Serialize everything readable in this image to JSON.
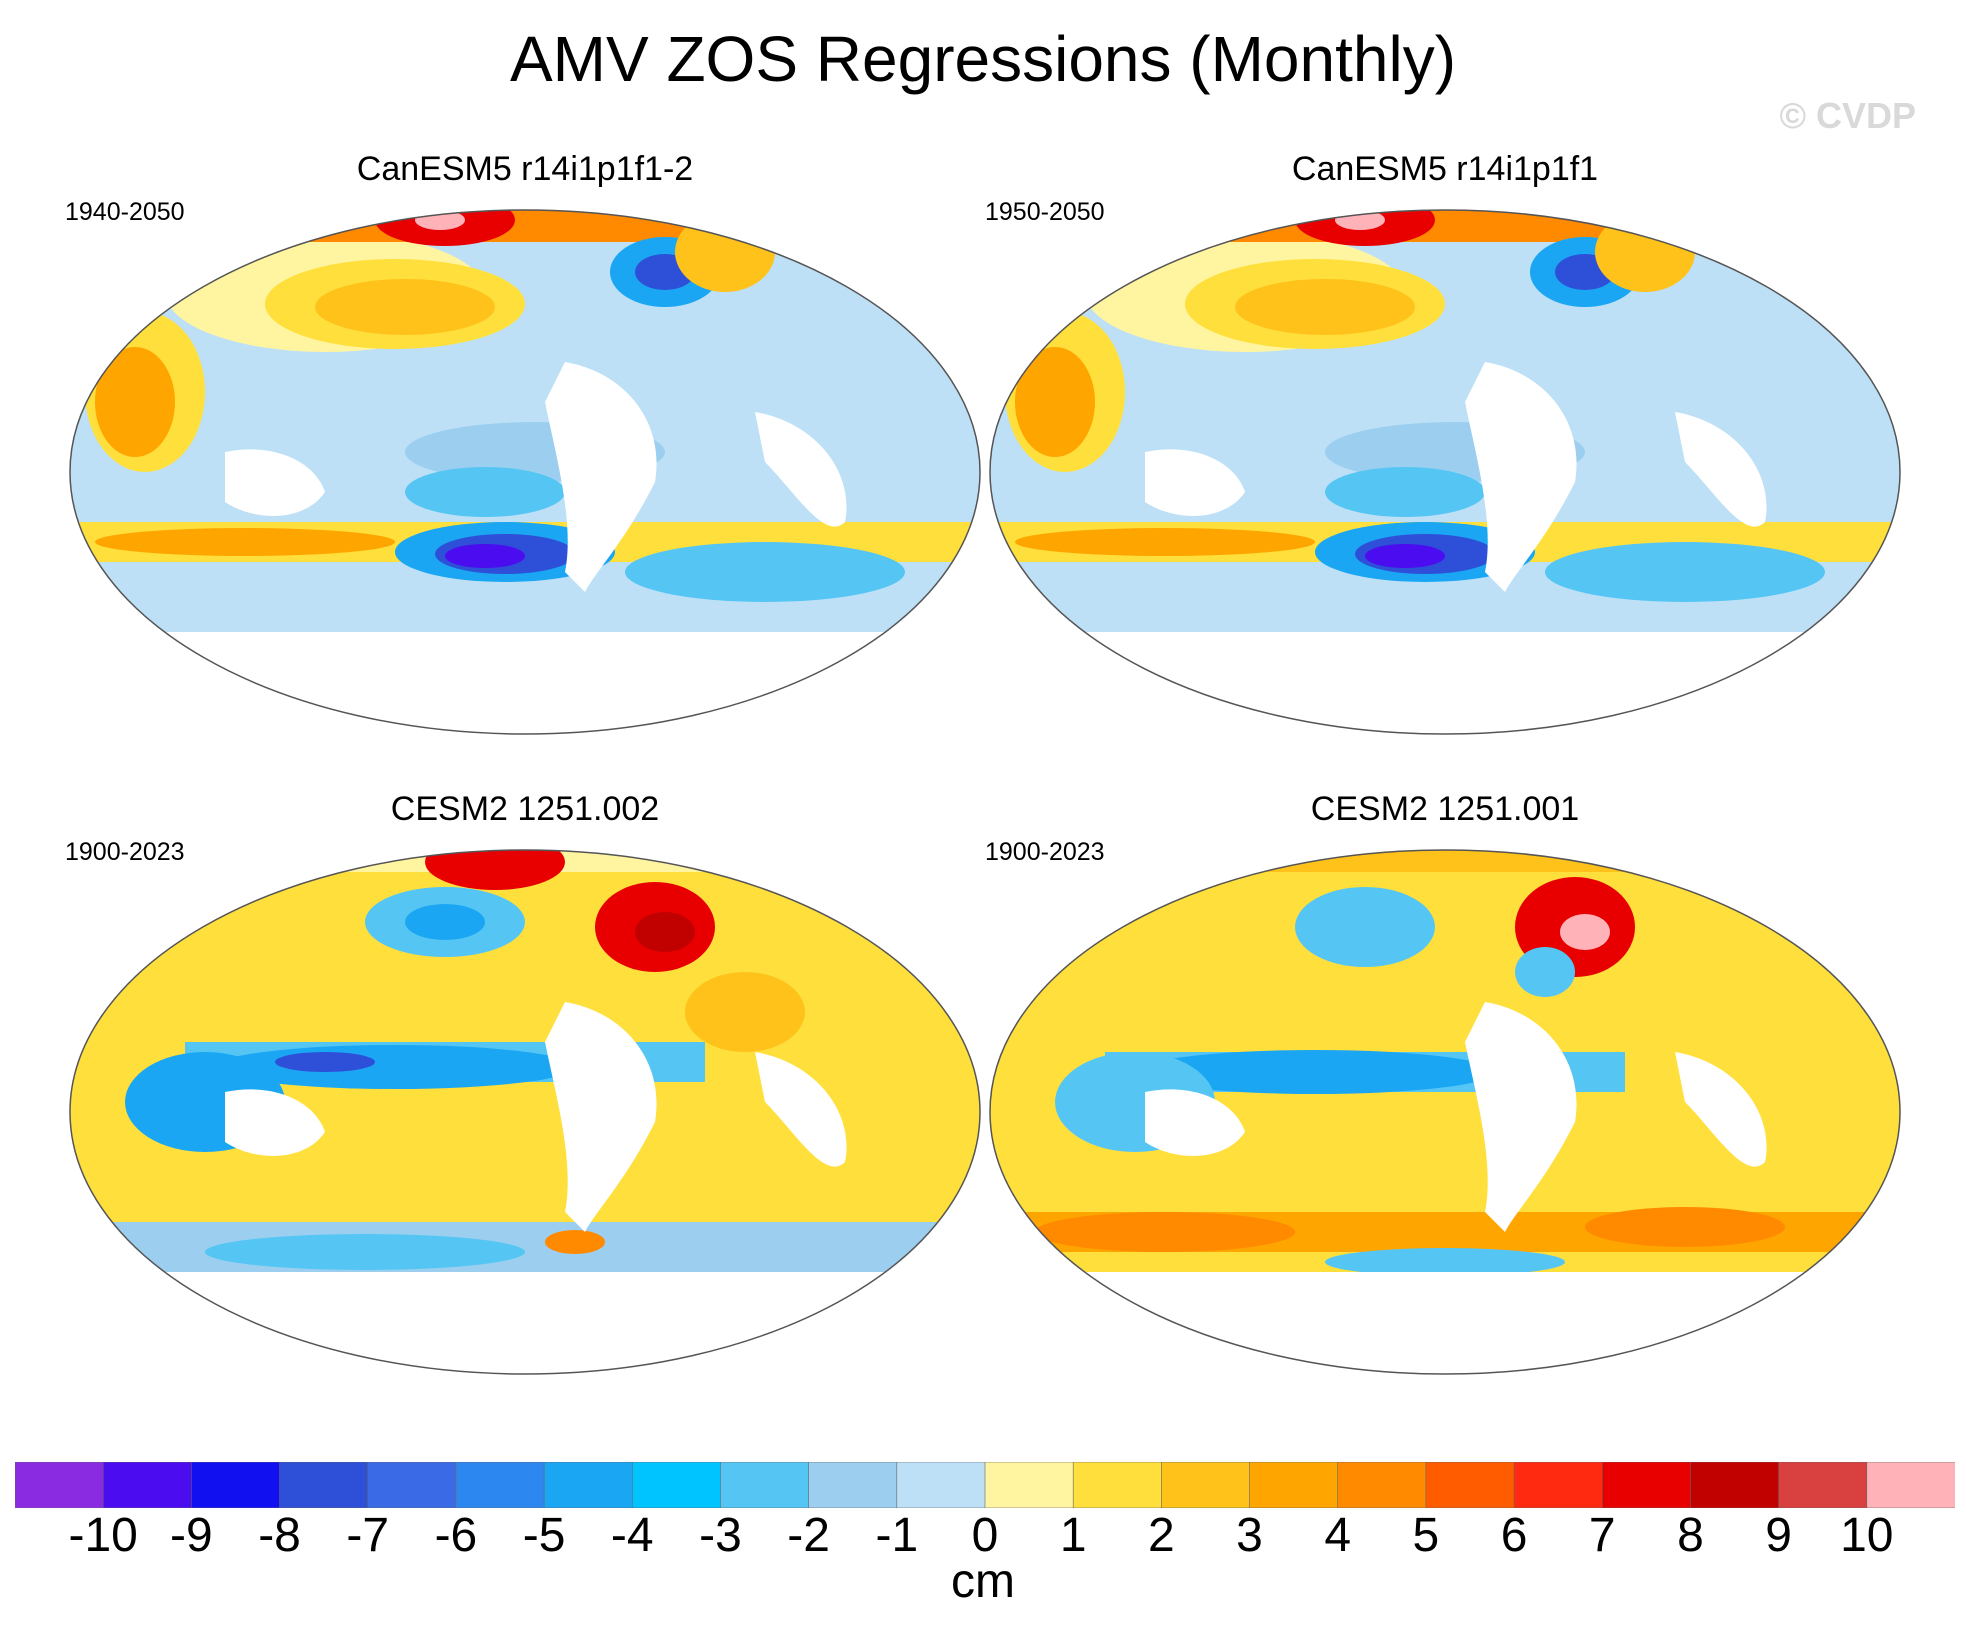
{
  "title": "AMV ZOS Regressions (Monthly)",
  "watermark": "© CVDP",
  "panels": [
    {
      "title": "CanESM5 r14i1p1f1-2",
      "period": "1940-2050"
    },
    {
      "title": "CanESM5 r14i1p1f1",
      "period": "1950-2050"
    },
    {
      "title": "CESM2 1251.002",
      "period": "1900-2023"
    },
    {
      "title": "CESM2 1251.001",
      "period": "1900-2023"
    }
  ],
  "colorbar": {
    "units": "cm",
    "tick_labels": [
      "-10",
      "-9",
      "-8",
      "-7",
      "-6",
      "-5",
      "-4",
      "-3",
      "-2",
      "-1",
      "0",
      "1",
      "2",
      "3",
      "4",
      "5",
      "6",
      "7",
      "8",
      "9",
      "10"
    ],
    "colors": [
      "#8a2be2",
      "#4b0cf0",
      "#1010f0",
      "#2e4fd8",
      "#3a6ae6",
      "#2d87f0",
      "#1aa6f3",
      "#00c4ff",
      "#55c6f4",
      "#9ccfef",
      "#bde0f6",
      "#fff5a0",
      "#ffdf3c",
      "#ffc21a",
      "#ffa500",
      "#ff8a00",
      "#ff5c00",
      "#ff2a10",
      "#e80000",
      "#c10000",
      "#d94040",
      "#ffb3b8"
    ]
  }
}
